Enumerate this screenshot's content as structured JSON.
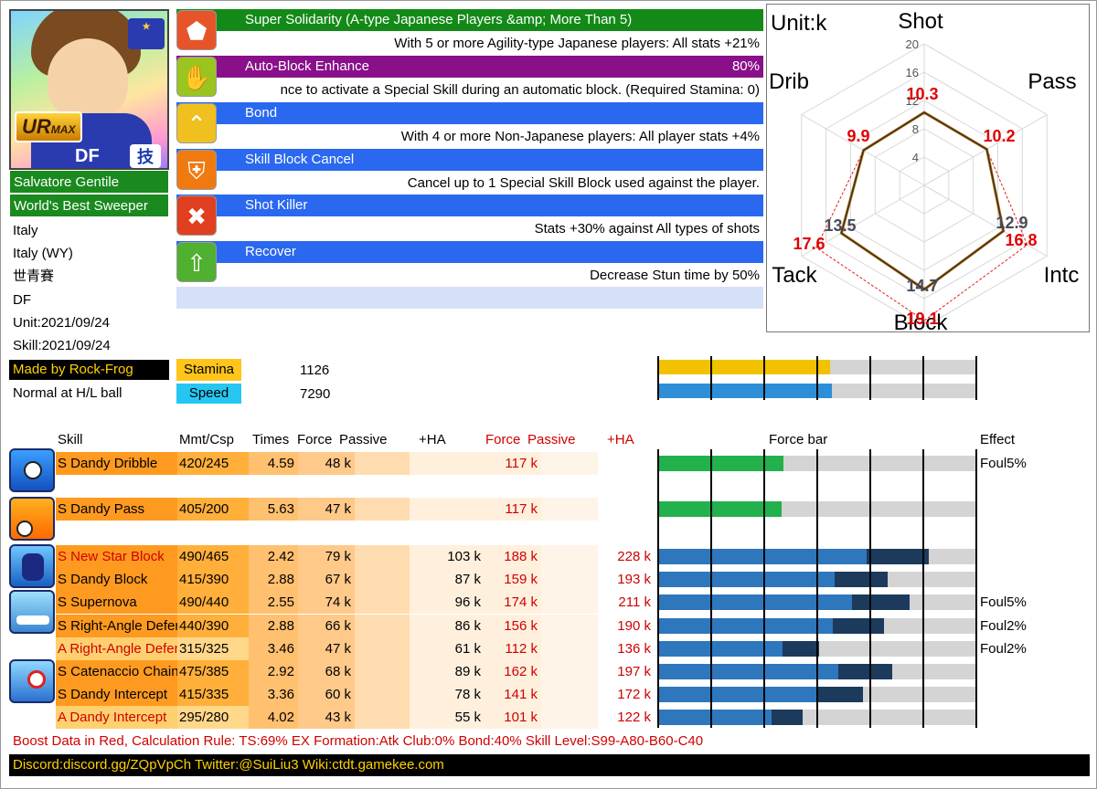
{
  "card": {
    "rarity": "UR",
    "rarity_suffix": "MAX",
    "position_badge": "DF",
    "type_badge": "技",
    "name": "Salvatore Gentile",
    "title": "World's Best Sweeper",
    "info": [
      "Italy",
      "Italy (WY)",
      "世青賽",
      "DF",
      "Unit:2021/09/24",
      "Skill:2021/09/24"
    ],
    "author": "Made by Rock-Frog",
    "ball_note": "Normal at H/L ball"
  },
  "stats": {
    "stamina_label": "Stamina",
    "stamina_value": "1126",
    "speed_label": "Speed",
    "speed_value": "7290",
    "stamina_fill": 0.54,
    "speed_fill": 0.546
  },
  "passives": [
    {
      "name": "Super Solidarity (A-type Japanese Players &amp; More Than 5)",
      "value": "",
      "desc": "With 5 or more Agility-type Japanese players: All stats +21%",
      "color": "#138a17",
      "icon": "pentagon-icon"
    },
    {
      "name": "Auto-Block Enhance",
      "value": "80%",
      "desc": "nce to activate a Special Skill during an automatic block. (Required Stamina: 0)",
      "color": "#8a0f8a",
      "icon": "auto-block-icon"
    },
    {
      "name": "Bond",
      "value": "",
      "desc": "With 4 or more Non-Japanese players: All player stats +4%",
      "color": "#2a68f0",
      "icon": "chevron-up-icon"
    },
    {
      "name": "Skill Block Cancel",
      "value": "",
      "desc": "Cancel up to 1 Special Skill Block used against the player.",
      "color": "#2a68f0",
      "icon": "block-cancel-icon"
    },
    {
      "name": "Shot Killer",
      "value": "",
      "desc": "Stats +30% against All types of shots",
      "color": "#2a68f0",
      "icon": "shot-killer-icon"
    },
    {
      "name": "Recover",
      "value": "",
      "desc": "Decrease Stun time by 50%",
      "color": "#2a68f0",
      "icon": "recover-icon"
    }
  ],
  "radar": {
    "unit": "Unit:k",
    "axes": [
      "Shot",
      "Pass",
      "Intc",
      "Block",
      "Tack",
      "Drib"
    ],
    "ticks": [
      "4",
      "8",
      "12",
      "16",
      "20"
    ],
    "base_values": [
      10.3,
      10.2,
      12.9,
      14.7,
      13.5,
      9.9
    ],
    "boost_values": [
      null,
      null,
      16.8,
      19.1,
      17.6,
      null
    ],
    "base_labels": [
      "10.3",
      "10.2",
      "12.9",
      "14.7",
      "13.5",
      "9.9"
    ],
    "boost_labels": [
      "",
      "",
      "16.8",
      "19.1",
      "17.6",
      ""
    ],
    "max": 20
  },
  "table": {
    "headers": {
      "skill": "Skill",
      "mmt": "Mmt/Csp",
      "times": "Times",
      "force": "Force",
      "passive": "Passive",
      "ha": "+HA",
      "rforce": "Force",
      "rpassive": "Passive",
      "rha": "+HA",
      "bar": "Force bar",
      "effect": "Effect"
    },
    "rows": [
      {
        "name": "S Dandy Dribble",
        "mmt": "420/245",
        "times": "4.59",
        "force": "48  k",
        "ha": "",
        "rforce": "117  k",
        "rha": "",
        "effect": "Foul5%",
        "name_red": false,
        "bar_color": "#22b14c",
        "fill": 0.395,
        "fill2": 0
      },
      {
        "name": "S Dandy Pass",
        "mmt": "405/200",
        "times": "5.63",
        "force": "47  k",
        "ha": "",
        "rforce": "117  k",
        "rha": "",
        "effect": "",
        "name_red": false,
        "bar_color": "#22b14c",
        "fill": 0.387,
        "fill2": 0
      },
      {
        "name": "S New Star Block",
        "mmt": "490/465",
        "times": "2.42",
        "force": "79  k",
        "ha": "103  k",
        "rforce": "188  k",
        "rha": "228  k",
        "effect": "",
        "name_red": true,
        "bar_color": "#2e77bd",
        "fill": 0.655,
        "fill2": 0.85
      },
      {
        "name": "S Dandy Block",
        "mmt": "415/390",
        "times": "2.88",
        "force": "67  k",
        "ha": "87  k",
        "rforce": "159  k",
        "rha": "193  k",
        "effect": "",
        "name_red": false,
        "bar_color": "#2e77bd",
        "fill": 0.555,
        "fill2": 0.72
      },
      {
        "name": "S Supernova",
        "mmt": "490/440",
        "times": "2.55",
        "force": "74  k",
        "ha": "96  k",
        "rforce": "174  k",
        "rha": "211  k",
        "effect": "Foul5%",
        "name_red": false,
        "bar_color": "#2e77bd",
        "fill": 0.61,
        "fill2": 0.79
      },
      {
        "name": "S Right-Angle Defense",
        "mmt": "440/390",
        "times": "2.88",
        "force": "66  k",
        "ha": "86  k",
        "rforce": "156  k",
        "rha": "190  k",
        "effect": "Foul2%",
        "name_red": false,
        "bar_color": "#2e77bd",
        "fill": 0.548,
        "fill2": 0.71
      },
      {
        "name": "A Right-Angle Defense",
        "mmt": "315/325",
        "times": "3.46",
        "force": "47  k",
        "ha": "61  k",
        "rforce": "112  k",
        "rha": "136  k",
        "effect": "Foul2%",
        "name_red": true,
        "bar_color": "#2e77bd",
        "fill": 0.39,
        "fill2": 0.505
      },
      {
        "name": "S Catenaccio Chain",
        "mmt": "475/385",
        "times": "2.92",
        "force": "68  k",
        "ha": "89  k",
        "rforce": "162  k",
        "rha": "197  k",
        "effect": "",
        "name_red": false,
        "bar_color": "#2e77bd",
        "fill": 0.565,
        "fill2": 0.735
      },
      {
        "name": "S Dandy Intercept",
        "mmt": "415/335",
        "times": "3.36",
        "force": "60  k",
        "ha": "78  k",
        "rforce": "141  k",
        "rha": "172  k",
        "effect": "",
        "name_red": false,
        "bar_color": "#2e77bd",
        "fill": 0.498,
        "fill2": 0.645
      },
      {
        "name": "A Dandy Intercept",
        "mmt": "295/280",
        "times": "4.02",
        "force": "43  k",
        "ha": "55  k",
        "rforce": "101  k",
        "rha": "122  k",
        "effect": "",
        "name_red": true,
        "bar_color": "#2e77bd",
        "fill": 0.357,
        "fill2": 0.455
      }
    ]
  },
  "footer": {
    "boost_note": "Boost Data in Red, Calculation Rule: TS:69% EX Formation:Atk Club:0% Bond:40% Skill Level:S99-A80-B60-C40",
    "links": "Discord:discord.gg/ZQpVpCh  Twitter:@SuiLiu3  Wiki:ctdt.gamekee.com"
  }
}
